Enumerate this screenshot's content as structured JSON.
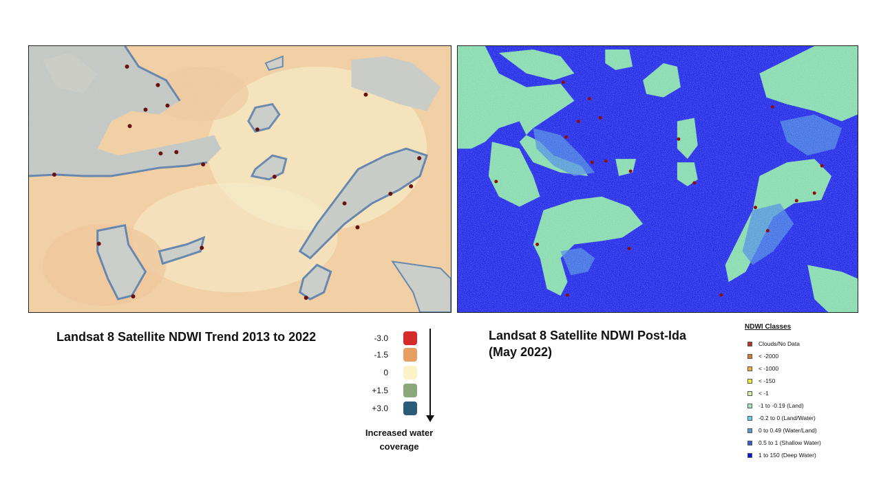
{
  "left_map": {
    "caption": "Landsat 8 Satellite NDWI Trend 2013 to 2022"
  },
  "right_map": {
    "caption_line1": "Landsat 8 Satellite NDWI Post-Ida",
    "caption_line2": "(May 2022)"
  },
  "trend_legend": {
    "items": [
      {
        "label": "-3.0",
        "color": "#d42a2a"
      },
      {
        "label": "-1.5",
        "color": "#e8a062"
      },
      {
        "label": "0",
        "color": "#fbf3c7"
      },
      {
        "label": "+1.5",
        "color": "#8aa87c"
      },
      {
        "label": "+3.0",
        "color": "#2c5c78"
      }
    ],
    "note_line1": "Increased water",
    "note_line2": "coverage"
  },
  "ndwi_legend": {
    "title": "NDWI Classes",
    "items": [
      {
        "label": "Clouds/No Data",
        "color": "#c0302a"
      },
      {
        "label": "< -2000",
        "color": "#e07a2a"
      },
      {
        "label": "< -1000",
        "color": "#f0b040"
      },
      {
        "label": "< -150",
        "color": "#f2ee30"
      },
      {
        "label": "< -1",
        "color": "#d8f0a0"
      },
      {
        "label": "-1 to -0.19 (Land)",
        "color": "#a8e6b8"
      },
      {
        "label": "-0.2 to 0 (Land/Water)",
        "color": "#60d4e8"
      },
      {
        "label": "0 to 0.49 (Water/Land)",
        "color": "#5a9ad8"
      },
      {
        "label": "0.5 to 1 (Shallow Water)",
        "color": "#3a5ad0"
      },
      {
        "label": "1 to 150 (Deep Water)",
        "color": "#0a14e6"
      }
    ]
  }
}
